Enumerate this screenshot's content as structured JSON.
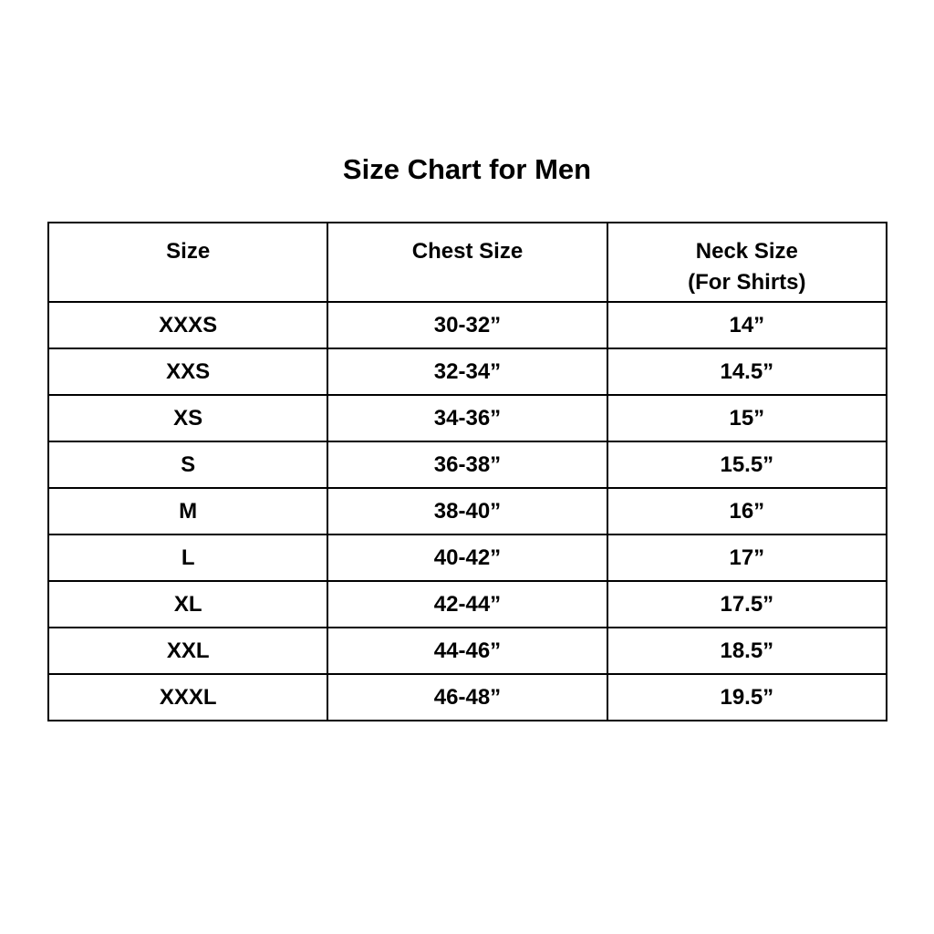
{
  "title": "Size Chart for Men",
  "table": {
    "headers": [
      {
        "main": "Size",
        "sub": ""
      },
      {
        "main": "Chest Size",
        "sub": ""
      },
      {
        "main": "Neck Size",
        "sub": "(For Shirts)"
      }
    ],
    "rows": [
      [
        "XXXS",
        "30-32”",
        "14”"
      ],
      [
        "XXS",
        "32-34”",
        "14.5”"
      ],
      [
        "XS",
        "34-36”",
        "15”"
      ],
      [
        "S",
        "36-38”",
        "15.5”"
      ],
      [
        "M",
        "38-40”",
        "16”"
      ],
      [
        "L",
        "40-42”",
        "17”"
      ],
      [
        "XL",
        "42-44”",
        "17.5”"
      ],
      [
        "XXL",
        "44-46”",
        "18.5”"
      ],
      [
        "XXXL",
        "46-48”",
        "19.5”"
      ]
    ]
  }
}
